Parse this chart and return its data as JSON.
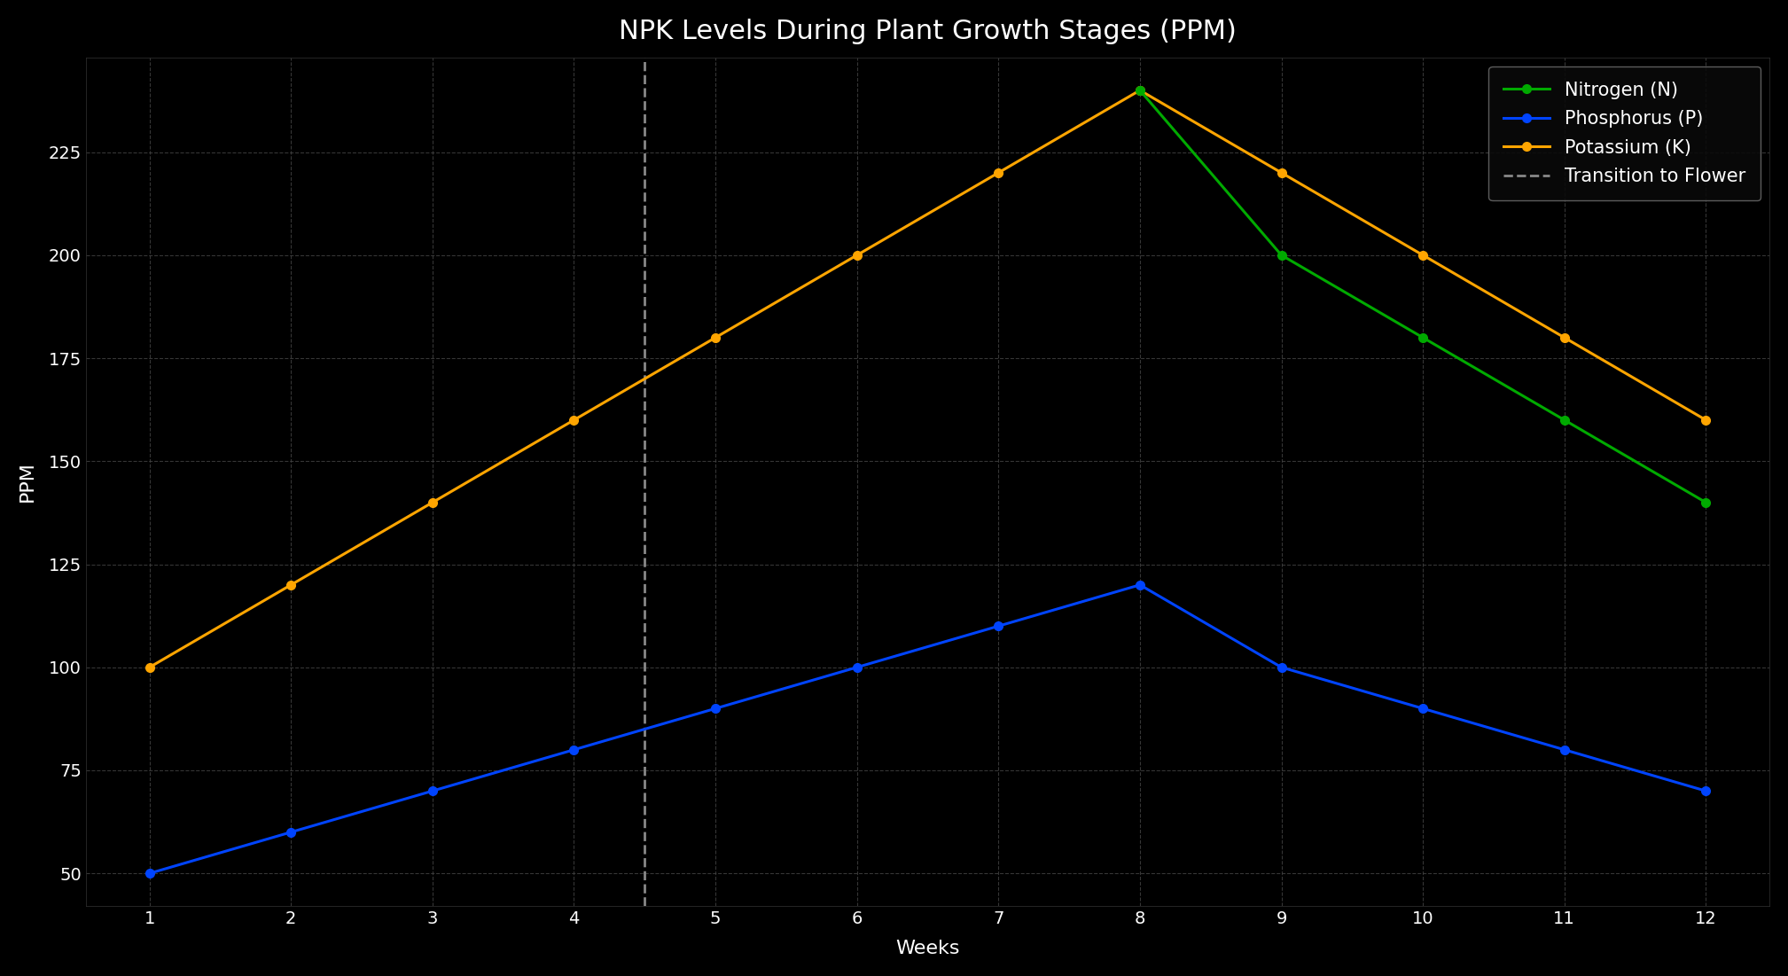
{
  "title": "NPK Levels During Plant Growth Stages (PPM)",
  "xlabel": "Weeks",
  "ylabel": "PPM",
  "background_color": "#000000",
  "grid_color": "#444444",
  "text_color": "#ffffff",
  "weeks": [
    1,
    2,
    3,
    4,
    5,
    6,
    7,
    8,
    9,
    10,
    11,
    12
  ],
  "nitrogen": [
    null,
    null,
    null,
    null,
    null,
    null,
    null,
    240,
    200,
    180,
    160,
    140
  ],
  "phosphorus": [
    50,
    60,
    70,
    80,
    90,
    100,
    110,
    120,
    100,
    90,
    80,
    70
  ],
  "potassium": [
    100,
    120,
    140,
    160,
    180,
    200,
    220,
    240,
    220,
    200,
    180,
    160
  ],
  "nitrogen_color": "#00aa00",
  "phosphorus_color": "#0044ff",
  "potassium_color": "#ffa500",
  "transition_line_x": 4.5,
  "transition_color": "#888888",
  "ylim": [
    42,
    248
  ],
  "yticks": [
    50,
    75,
    100,
    125,
    150,
    175,
    200,
    225
  ],
  "xticks": [
    1,
    2,
    3,
    4,
    5,
    6,
    7,
    8,
    9,
    10,
    11,
    12
  ],
  "legend_labels": [
    "Nitrogen (N)",
    "Phosphorus (P)",
    "Potassium (K)",
    "Transition to Flower"
  ],
  "title_fontsize": 22,
  "axis_label_fontsize": 16,
  "tick_fontsize": 14,
  "legend_fontsize": 15,
  "linewidth": 2.2,
  "markersize": 7
}
